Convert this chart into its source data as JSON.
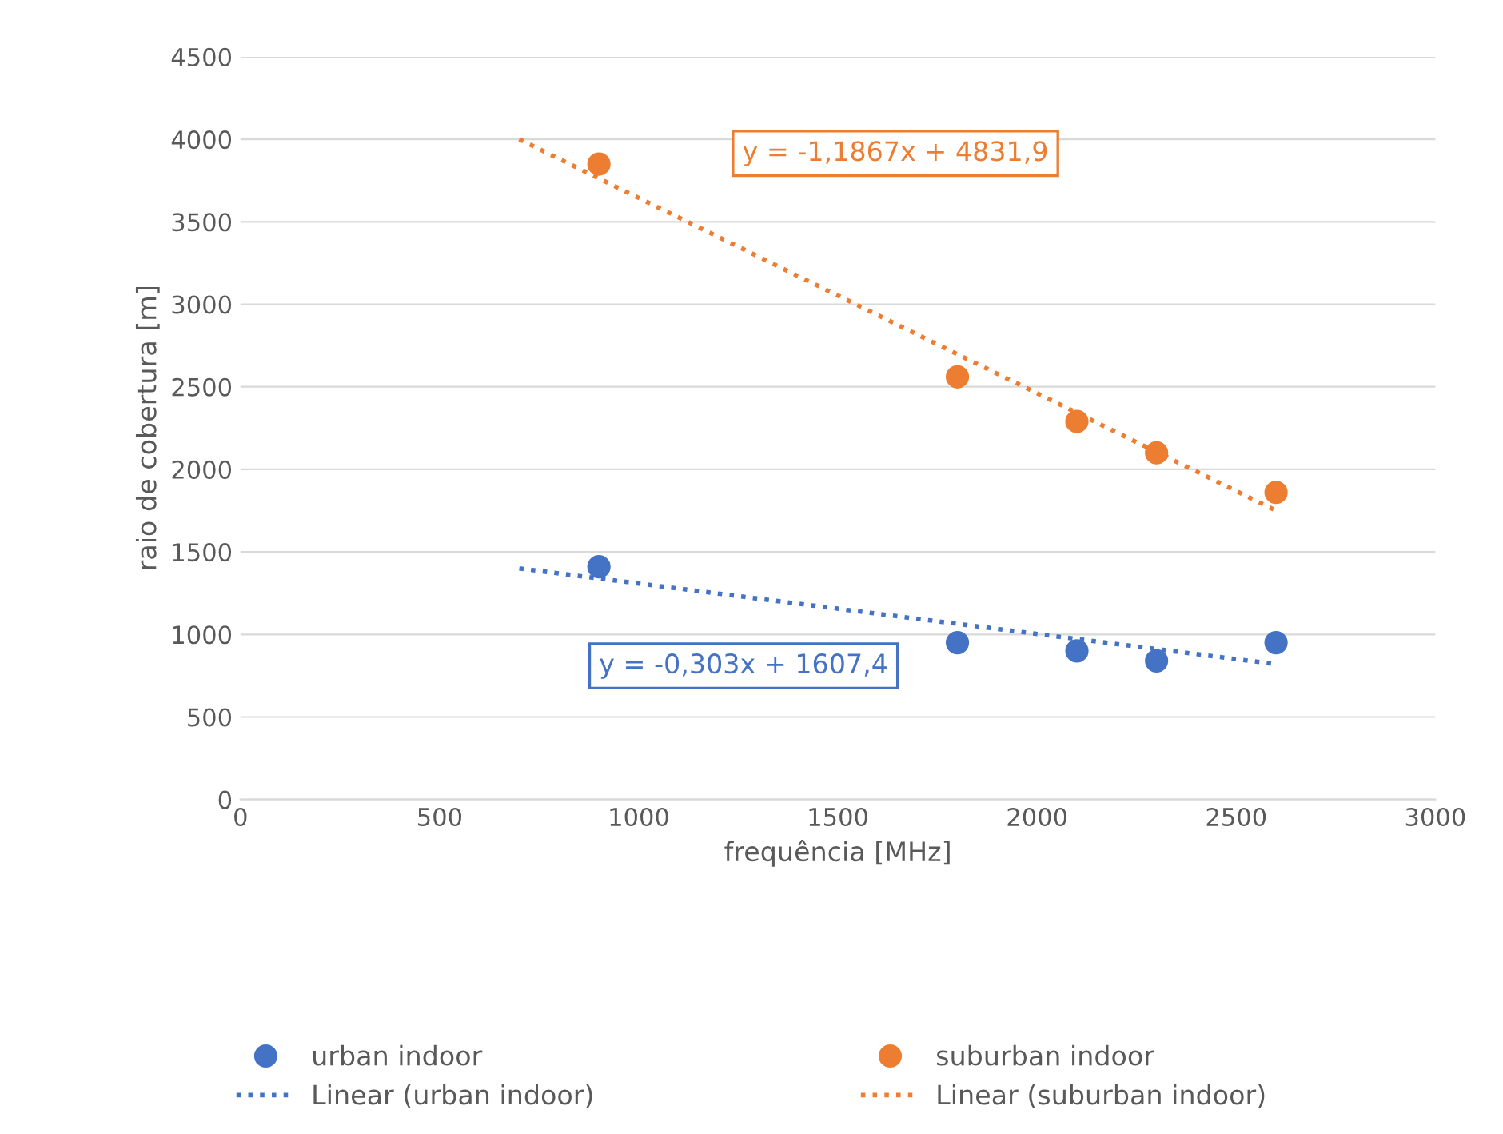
{
  "chart_data": {
    "type": "scatter",
    "xlabel": "frequência [MHz]",
    "ylabel": "raio de cobertura [m]",
    "xlim": [
      0,
      3000
    ],
    "xticks": [
      0,
      500,
      1000,
      1500,
      2000,
      2500,
      3000
    ],
    "ylim": [
      0,
      4500
    ],
    "yticks": [
      0,
      500,
      1000,
      1500,
      2000,
      2500,
      3000,
      3500,
      4000,
      4500
    ],
    "grid": "y",
    "legend": "bottom",
    "series": [
      {
        "name": "urban indoor",
        "marker": "circle",
        "color": "#4472c4",
        "x": [
          900,
          1800,
          2100,
          2300,
          2600
        ],
        "values": [
          1410,
          950,
          900,
          840,
          950
        ]
      },
      {
        "name": "suburban indoor",
        "marker": "circle",
        "color": "#ed7d31",
        "x": [
          900,
          1800,
          2100,
          2300,
          2600
        ],
        "values": [
          3850,
          2560,
          2290,
          2100,
          1860
        ]
      },
      {
        "name": "Linear (urban indoor)",
        "type": "line",
        "line_style": "dotted",
        "color": "#4472c4",
        "x": [
          700,
          2600
        ],
        "values": [
          1400,
          820
        ]
      },
      {
        "name": "Linear (suburban indoor)",
        "type": "line",
        "line_style": "dotted",
        "color": "#ed7d31",
        "x": [
          700,
          2600
        ],
        "values": [
          4000,
          1750
        ]
      }
    ],
    "annotations": [
      "y = -0,303x + 1607,4",
      "y = -1,1867x + 4831,9"
    ]
  }
}
